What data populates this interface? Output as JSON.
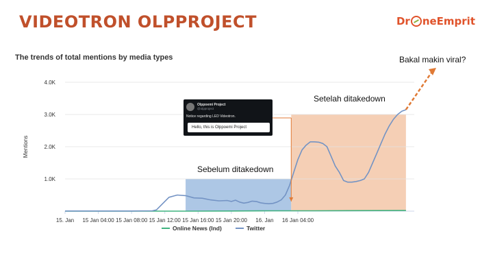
{
  "header": {
    "title": "VIDEOTRON OLPPROJECT",
    "logo_text_left": "Dr",
    "logo_text_right": "neEmprit"
  },
  "subtitle": "The trends of total mentions by media types",
  "tweet": {
    "name": "Olppoemi Project",
    "handle": "@olpproject",
    "notice": "Notice regarding LED Videotron.",
    "message": "Hello, this is Olppoemi Project"
  },
  "annotations": {
    "before": "Sebelum ditakedown",
    "after": "Setelah ditakedown",
    "viral": "Bakal makin viral?"
  },
  "colors": {
    "twitter": "#7393c4",
    "online_news": "#3fb27f",
    "before_region": "#9fbde0",
    "after_region": "#f3c7a8",
    "arrow": "#e07a35",
    "title": "#c0502b"
  },
  "chart_data": {
    "type": "line",
    "title": "",
    "xlabel": "",
    "ylabel": "Mentions",
    "xlim": [
      0,
      42
    ],
    "ylim": [
      0,
      4000
    ],
    "x_ticks": [
      {
        "x": 0,
        "label": "15. Jan"
      },
      {
        "x": 4,
        "label": "15 Jan 04:00"
      },
      {
        "x": 8,
        "label": "15 Jan 08:00"
      },
      {
        "x": 12,
        "label": "15 Jan 12:00"
      },
      {
        "x": 16,
        "label": "15 Jan 16:00"
      },
      {
        "x": 20,
        "label": "15 Jan 20:00"
      },
      {
        "x": 24,
        "label": "16. Jan"
      },
      {
        "x": 28,
        "label": "16 Jan 04:00"
      }
    ],
    "y_ticks": [
      {
        "y": 1000,
        "label": "1.0K"
      },
      {
        "y": 2000,
        "label": "2.0K"
      },
      {
        "y": 3000,
        "label": "3.0K"
      },
      {
        "y": 4000,
        "label": "4.0K"
      }
    ],
    "series": [
      {
        "name": "Online News (Ind)",
        "x": [
          0,
          5,
          10,
          15,
          20,
          25,
          30,
          41
        ],
        "values": [
          0,
          0,
          0,
          0,
          5,
          10,
          10,
          20
        ]
      },
      {
        "name": "Twitter",
        "x": [
          0,
          4,
          8,
          10.5,
          11,
          11.8,
          12.5,
          13.5,
          14.5,
          15.5,
          16.5,
          17.5,
          18.5,
          19.5,
          20,
          20.5,
          21,
          21.5,
          22,
          22.5,
          23,
          23.5,
          24,
          24.5,
          25,
          25.5,
          26,
          26.5,
          27,
          27.5,
          28,
          28.5,
          29,
          29.5,
          30,
          30.5,
          31,
          31.5,
          32,
          32.5,
          33,
          33.5,
          34,
          34.5,
          35,
          35.5,
          36,
          36.5,
          37,
          37.5,
          38,
          38.5,
          39,
          39.5,
          40,
          40.5,
          41
        ],
        "values": [
          5,
          5,
          5,
          10,
          40,
          250,
          430,
          500,
          480,
          410,
          400,
          350,
          320,
          330,
          300,
          340,
          280,
          250,
          270,
          310,
          300,
          260,
          240,
          230,
          240,
          280,
          350,
          500,
          800,
          1200,
          1600,
          1900,
          2050,
          2150,
          2150,
          2140,
          2100,
          2000,
          1700,
          1400,
          1200,
          950,
          900,
          900,
          920,
          950,
          1000,
          1200,
          1500,
          1800,
          2100,
          2400,
          2650,
          2850,
          3000,
          3100,
          3150
        ]
      }
    ],
    "legend": "bottom-center",
    "grid": true,
    "regions": [
      {
        "label": "Sebelum ditakedown",
        "x": [
          14.5,
          27.2
        ],
        "y": [
          0,
          1000
        ]
      },
      {
        "label": "Setelah ditakedown",
        "x": [
          27.2,
          41
        ],
        "y": [
          0,
          3000
        ]
      }
    ]
  }
}
